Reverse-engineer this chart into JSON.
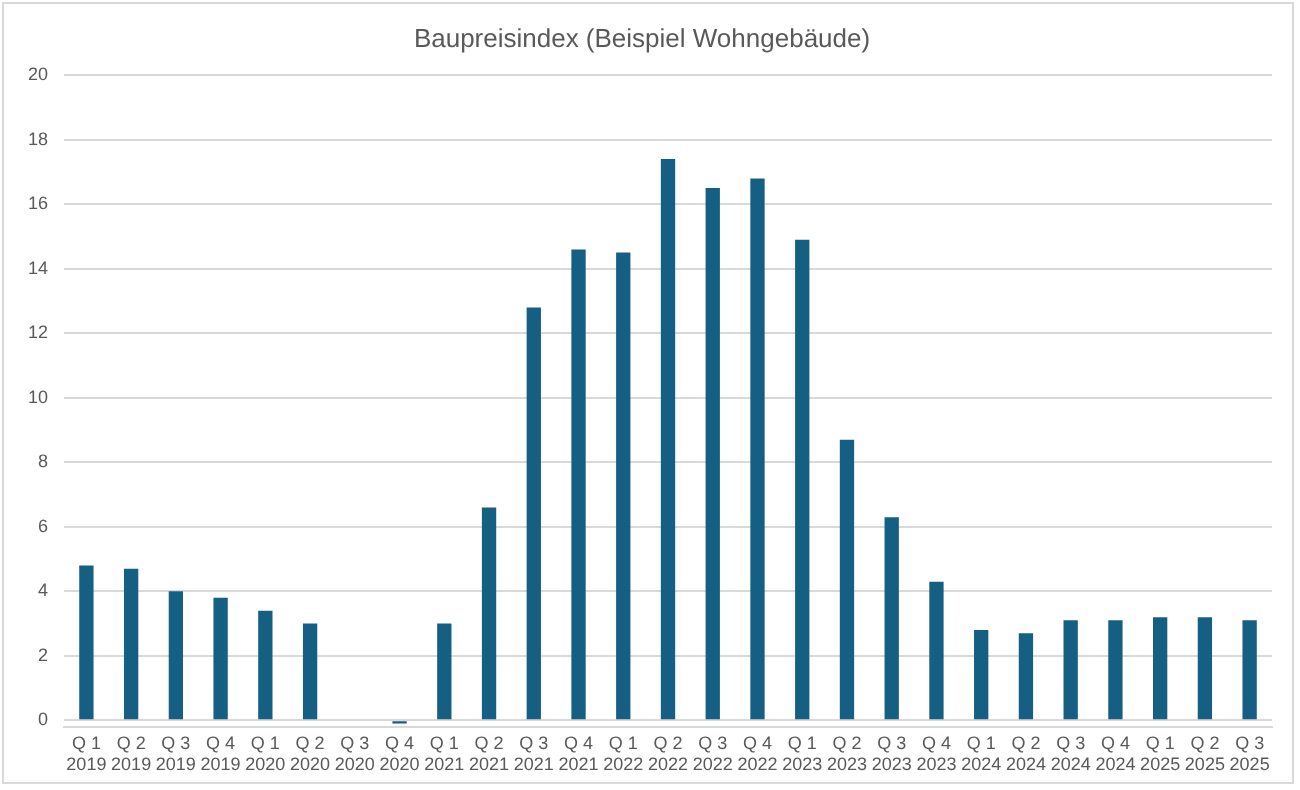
{
  "chart_data": {
    "type": "bar",
    "title": "Baupreisindex (Beispiel Wohngebäude)",
    "categories": [
      "Q 1\n2019",
      "Q 2\n2019",
      "Q 3\n2019",
      "Q 4\n2019",
      "Q 1\n2020",
      "Q 2\n2020",
      "Q 3\n2020",
      "Q 4\n2020",
      "Q 1\n2021",
      "Q 2\n2021",
      "Q 3\n2021",
      "Q 4\n2021",
      "Q 1\n2022",
      "Q 2\n2022",
      "Q 3\n2022",
      "Q 4\n2022",
      "Q 1\n2023",
      "Q 2\n2023",
      "Q 3\n2023",
      "Q 4\n2023",
      "Q 1\n2024",
      "Q 2\n2024",
      "Q 3\n2024",
      "Q 4\n2024",
      "Q 1\n2025",
      "Q 2\n2025",
      "Q 3\n2025"
    ],
    "values": [
      4.8,
      4.7,
      4.0,
      3.8,
      3.4,
      3.0,
      0,
      -0.1,
      3.0,
      6.6,
      12.8,
      14.6,
      14.5,
      17.4,
      16.5,
      16.8,
      14.9,
      8.7,
      6.3,
      4.3,
      2.8,
      2.7,
      3.1,
      3.1,
      3.2,
      3.2,
      3.1
    ],
    "color": "#156082",
    "ylim": [
      -0.2,
      20
    ],
    "yticks": [
      0,
      2,
      4,
      6,
      8,
      10,
      12,
      14,
      16,
      18,
      20
    ],
    "grid": "y"
  }
}
